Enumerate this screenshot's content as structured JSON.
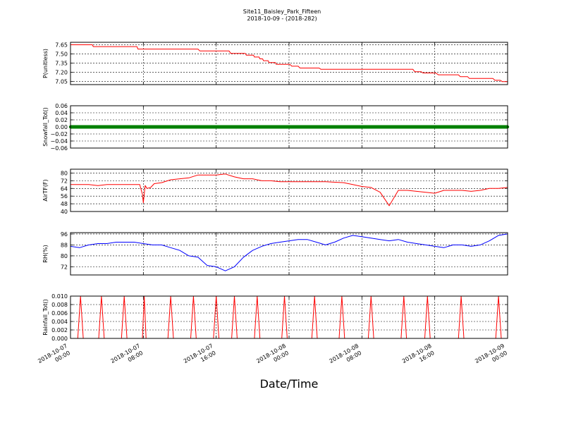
{
  "figure": {
    "title_line1": "Site11_Baisley_Park_Fifteen",
    "title_line2": "2018-10-09 - (2018-282)",
    "xlabel": "Date/Time"
  },
  "chart_data": [
    {
      "type": "line",
      "ylabel": "P(unitless)",
      "color": "#ff0000",
      "ylim": [
        7.0,
        7.69
      ],
      "yticks": [
        7.05,
        7.2,
        7.35,
        7.5,
        7.65
      ],
      "ytick_labels": [
        "7.05",
        "7.20",
        "7.35",
        "7.50",
        "7.65"
      ],
      "x_hours": [
        0,
        2.4,
        2.5,
        7.3,
        7.4,
        14.0,
        14.2,
        17.4,
        17.6,
        19.2,
        19.3,
        20.1,
        20.2,
        20.7,
        20.8,
        21.1,
        21.2,
        21.7,
        21.8,
        22.5,
        22.6,
        24.1,
        24.3,
        25.0,
        25.2,
        27.3,
        27.5,
        37.6,
        37.8,
        38.5,
        38.7,
        40.1,
        40.4,
        42.6,
        42.8,
        43.6,
        43.8,
        46.4,
        46.6,
        47.2,
        47.4,
        48.0
      ],
      "y": [
        7.65,
        7.65,
        7.62,
        7.62,
        7.58,
        7.58,
        7.55,
        7.55,
        7.51,
        7.51,
        7.48,
        7.48,
        7.45,
        7.45,
        7.42,
        7.42,
        7.39,
        7.39,
        7.36,
        7.36,
        7.33,
        7.33,
        7.3,
        7.3,
        7.27,
        7.27,
        7.25,
        7.25,
        7.21,
        7.21,
        7.19,
        7.19,
        7.16,
        7.16,
        7.13,
        7.13,
        7.1,
        7.1,
        7.07,
        7.07,
        7.05,
        7.05
      ]
    },
    {
      "type": "line",
      "ylabel": "Snowfall_Tot()",
      "color": "#008000",
      "marker": "dots",
      "ylim": [
        -0.06,
        0.06
      ],
      "yticks": [
        -0.06,
        -0.04,
        -0.02,
        0.0,
        0.02,
        0.04,
        0.06
      ],
      "ytick_labels": [
        "−0.06",
        "−0.04",
        "−0.02",
        "0.00",
        "0.02",
        "0.04",
        "0.06"
      ],
      "x_hours": [
        0,
        48
      ],
      "y": [
        0,
        0
      ]
    },
    {
      "type": "line",
      "ylabel": "AirTF(F)",
      "color": "#ff0000",
      "ylim": [
        40,
        84
      ],
      "yticks": [
        40,
        48,
        56,
        64,
        72,
        80
      ],
      "ytick_labels": [
        "40",
        "48",
        "56",
        "64",
        "72",
        "80"
      ],
      "x_hours": [
        0,
        2,
        3,
        4,
        5,
        6,
        7,
        7.6,
        7.9,
        8.0,
        8.2,
        8.4,
        8.8,
        9.2,
        10,
        11,
        12,
        13,
        14,
        15,
        16,
        17,
        18,
        19,
        20,
        21,
        22,
        23,
        24,
        26,
        28,
        30,
        31,
        32,
        33,
        34,
        35,
        36,
        37,
        38,
        39,
        40,
        41,
        42,
        43,
        44,
        45,
        46,
        47,
        48
      ],
      "y": [
        68,
        68,
        67,
        68,
        68,
        68,
        68,
        68,
        58,
        49,
        67,
        64,
        65,
        69,
        70,
        73,
        74,
        75,
        78,
        78,
        78,
        79,
        76,
        74,
        74,
        72,
        72,
        71,
        71,
        71,
        71,
        70,
        68,
        66,
        65,
        60,
        46,
        62,
        62,
        61,
        60,
        59,
        62,
        62,
        62,
        61,
        62,
        64,
        64,
        65
      ]
    },
    {
      "type": "line",
      "ylabel": "RH(%)",
      "color": "#0000ff",
      "ylim": [
        66,
        97
      ],
      "yticks": [
        72,
        80,
        88,
        96
      ],
      "ytick_labels": [
        "72",
        "80",
        "88",
        "96"
      ],
      "x_hours": [
        0,
        1,
        2,
        3,
        4,
        5,
        6,
        7,
        8,
        9,
        10,
        11,
        12,
        13,
        14,
        15,
        16,
        17,
        18,
        19,
        20,
        21,
        22,
        23,
        24,
        25,
        26,
        27,
        28,
        29,
        30,
        31,
        32,
        33,
        34,
        35,
        36,
        37,
        38,
        39,
        40,
        41,
        42,
        43,
        44,
        45,
        46,
        47,
        48
      ],
      "y": [
        87,
        86,
        88,
        89,
        89,
        90,
        90,
        90,
        89,
        88,
        88,
        86,
        84,
        80,
        79,
        73,
        72,
        69,
        72,
        79,
        84,
        87,
        89,
        90,
        91,
        92,
        92,
        90,
        88,
        90,
        93,
        95,
        94,
        93,
        92,
        91,
        92,
        90,
        89,
        88,
        87,
        86,
        88,
        88,
        87,
        88,
        91,
        95,
        96
      ]
    },
    {
      "type": "line",
      "ylabel": "Rainfall_Tot()",
      "color": "#ff0000",
      "ylim": [
        0.0,
        0.01
      ],
      "yticks": [
        0.0,
        0.002,
        0.004,
        0.006,
        0.008,
        0.01
      ],
      "ytick_labels": [
        "0.000",
        "0.002",
        "0.004",
        "0.006",
        "0.008",
        "0.010"
      ],
      "x_hours": [
        0,
        0.8,
        1.1,
        1.4,
        3.1,
        3.4,
        3.7,
        5.6,
        5.9,
        6.2,
        7.9,
        8.1,
        8.3,
        10.7,
        11.0,
        11.3,
        13.2,
        13.5,
        13.8,
        15.7,
        16.0,
        16.3,
        17.7,
        18.0,
        18.3,
        20.2,
        20.5,
        20.8,
        23.2,
        23.5,
        23.8,
        26.5,
        26.8,
        27.1,
        29.5,
        29.8,
        30.1,
        32.7,
        33.0,
        33.3,
        36.3,
        36.6,
        36.9,
        38.9,
        39.2,
        39.5,
        42.6,
        42.9,
        43.2,
        46.7,
        47.0,
        47.3,
        48
      ],
      "y": [
        0,
        0,
        0.01,
        0,
        0,
        0.01,
        0,
        0,
        0.01,
        0,
        0,
        0.01,
        0,
        0,
        0.01,
        0,
        0,
        0.01,
        0,
        0,
        0.01,
        0,
        0,
        0.01,
        0,
        0,
        0.01,
        0,
        0,
        0.01,
        0,
        0,
        0.01,
        0,
        0,
        0.01,
        0,
        0,
        0.01,
        0,
        0,
        0.01,
        0,
        0,
        0.01,
        0,
        0,
        0.01,
        0,
        0,
        0.01,
        0,
        0
      ]
    }
  ],
  "shared_x": {
    "range_hours": [
      0,
      48
    ],
    "tick_hours": [
      0,
      8,
      16,
      24,
      32,
      40,
      48
    ],
    "tick_labels": [
      [
        "2018-10-07",
        "00:00"
      ],
      [
        "2018-10-07",
        "08:00"
      ],
      [
        "2018-10-07",
        "16:00"
      ],
      [
        "2018-10-08",
        "00:00"
      ],
      [
        "2018-10-08",
        "08:00"
      ],
      [
        "2018-10-08",
        "16:00"
      ],
      [
        "2018-10-09",
        "00:00"
      ]
    ],
    "grid": true
  }
}
